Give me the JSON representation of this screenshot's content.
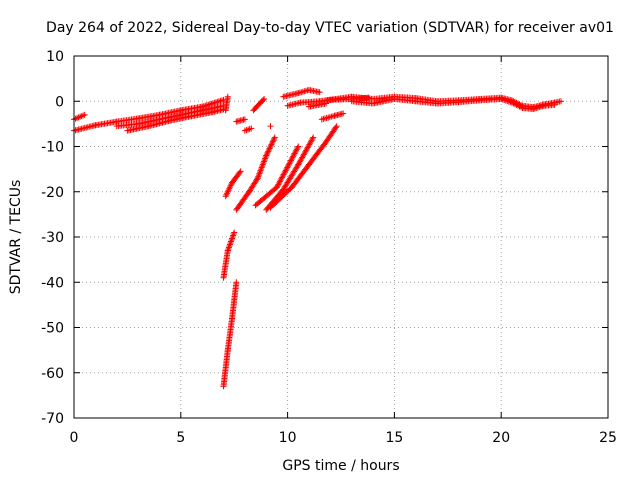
{
  "chart_data": {
    "type": "scatter",
    "title": "Day 264 of 2022, Sidereal Day-to-day VTEC variation (SDTVAR) for receiver av01",
    "xlabel": "GPS time / hours",
    "ylabel": "SDTVAR / TECUs",
    "xlim": [
      0,
      25
    ],
    "ylim": [
      -70,
      10
    ],
    "grid": true,
    "marker": "plus",
    "color": "#ff0000",
    "xticks": [
      0,
      5,
      10,
      15,
      20,
      25
    ],
    "yticks": [
      10,
      0,
      -10,
      -20,
      -30,
      -40,
      -50,
      -60,
      -70
    ],
    "xtick_labels": [
      "0",
      "5",
      "10",
      "15",
      "20",
      "25"
    ],
    "ytick_labels": [
      "10",
      "0",
      "-10",
      "-20",
      "-30",
      "-40",
      "-50",
      "-60",
      "-70"
    ],
    "series": [
      {
        "name": "early-upper",
        "segments": [
          [
            [
              0.0,
              -4.0
            ],
            [
              0.5,
              -3.0
            ]
          ],
          [
            [
              0.0,
              -6.5
            ],
            [
              1.0,
              -5.3
            ],
            [
              2.0,
              -4.5
            ],
            [
              3.0,
              -3.8
            ],
            [
              4.0,
              -3.0
            ],
            [
              5.0,
              -2.0
            ],
            [
              6.0,
              -1.2
            ],
            [
              7.0,
              0.3
            ]
          ]
        ]
      },
      {
        "name": "early-lower",
        "segments": [
          [
            [
              2.0,
              -5.5
            ],
            [
              3.0,
              -5.0
            ],
            [
              4.0,
              -4.0
            ],
            [
              5.0,
              -3.0
            ],
            [
              6.0,
              -2.0
            ],
            [
              7.0,
              -1.0
            ]
          ],
          [
            [
              2.5,
              -6.5
            ],
            [
              3.5,
              -5.5
            ],
            [
              4.5,
              -4.3
            ],
            [
              5.5,
              -3.3
            ],
            [
              6.5,
              -2.4
            ],
            [
              7.0,
              -1.8
            ]
          ]
        ]
      },
      {
        "name": "mid-drop",
        "segments": [
          [
            [
              7.2,
              1.0
            ],
            [
              7.1,
              -2.0
            ]
          ],
          [
            [
              7.0,
              -63.0
            ],
            [
              7.2,
              -55.0
            ],
            [
              7.4,
              -48.0
            ],
            [
              7.6,
              -40.0
            ]
          ],
          [
            [
              7.0,
              -39.0
            ],
            [
              7.2,
              -33.0
            ],
            [
              7.5,
              -29.0
            ]
          ],
          [
            [
              7.1,
              -21.0
            ],
            [
              7.4,
              -18.0
            ],
            [
              7.8,
              -15.5
            ]
          ]
        ]
      },
      {
        "name": "mid-scatter",
        "segments": [
          [
            [
              7.6,
              -4.5
            ],
            [
              8.0,
              -4.0
            ]
          ],
          [
            [
              8.0,
              -6.5
            ],
            [
              8.3,
              -6.0
            ]
          ],
          [
            [
              8.4,
              -2.0
            ],
            [
              8.9,
              0.5
            ]
          ],
          [
            [
              7.6,
              -24.0
            ],
            [
              8.2,
              -20.0
            ],
            [
              8.6,
              -17.0
            ],
            [
              9.0,
              -12.0
            ],
            [
              9.4,
              -8.0
            ]
          ]
        ]
      },
      {
        "name": "mid-rise",
        "segments": [
          [
            [
              8.5,
              -23.0
            ],
            [
              9.5,
              -19.0
            ],
            [
              10.5,
              -10.0
            ]
          ],
          [
            [
              9.0,
              -24.0
            ],
            [
              9.8,
              -19.5
            ],
            [
              10.5,
              -14.0
            ],
            [
              11.2,
              -8.0
            ]
          ],
          [
            [
              9.2,
              -23.5
            ],
            [
              10.2,
              -19.0
            ],
            [
              11.0,
              -14.0
            ],
            [
              11.8,
              -9.0
            ],
            [
              12.3,
              -5.5
            ]
          ]
        ]
      },
      {
        "name": "evening",
        "segments": [
          [
            [
              9.8,
              1.0
            ],
            [
              10.5,
              1.8
            ],
            [
              11.0,
              2.5
            ],
            [
              11.5,
              2.0
            ]
          ],
          [
            [
              10.0,
              -1.0
            ],
            [
              10.6,
              -0.3
            ],
            [
              11.5,
              0.0
            ],
            [
              12.0,
              0.3
            ],
            [
              13.0,
              0.5
            ],
            [
              13.8,
              0.8
            ]
          ],
          [
            [
              11.6,
              -4.0
            ],
            [
              12.2,
              -3.2
            ],
            [
              12.6,
              -2.7
            ]
          ],
          [
            [
              11.0,
              -1.2
            ],
            [
              11.8,
              -0.5
            ]
          ]
        ]
      },
      {
        "name": "late",
        "segments": [
          [
            [
              11.8,
              0.2
            ],
            [
              13.0,
              1.0
            ],
            [
              14.0,
              0.5
            ],
            [
              15.0,
              1.0
            ],
            [
              16.0,
              0.7
            ],
            [
              17.0,
              0.0
            ],
            [
              18.0,
              0.2
            ],
            [
              19.0,
              0.5
            ],
            [
              20.0,
              0.8
            ],
            [
              20.5,
              0.2
            ],
            [
              21.0,
              -1.0
            ],
            [
              21.5,
              -1.3
            ],
            [
              22.0,
              -0.7
            ],
            [
              22.5,
              -0.3
            ],
            [
              22.8,
              0.0
            ]
          ],
          [
            [
              13.0,
              0.0
            ],
            [
              14.0,
              -0.5
            ],
            [
              15.0,
              0.5
            ],
            [
              16.0,
              0.0
            ],
            [
              17.0,
              -0.5
            ],
            [
              18.0,
              -0.2
            ],
            [
              19.0,
              0.2
            ],
            [
              20.0,
              0.5
            ],
            [
              20.5,
              -0.3
            ],
            [
              21.0,
              -1.5
            ],
            [
              21.5,
              -1.7
            ],
            [
              22.0,
              -1.0
            ],
            [
              22.5,
              -0.8
            ]
          ]
        ]
      }
    ],
    "isolated_points": [
      [
        9.2,
        -5.5
      ]
    ]
  }
}
